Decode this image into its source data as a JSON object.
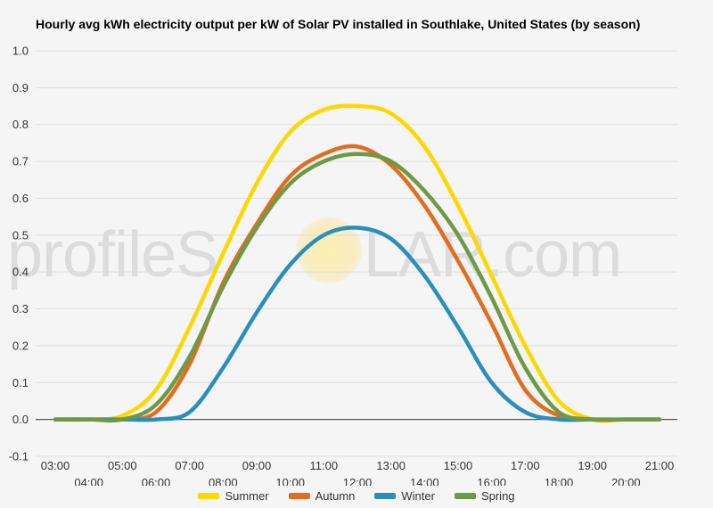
{
  "chart_data": {
    "type": "line",
    "title": "Hourly avg kWh electricity output per kW of Solar PV installed in Southlake, United States (by season)",
    "watermark": "profileSOLAR.com",
    "xlabel": "",
    "ylabel": "",
    "x": [
      "03:00",
      "04:00",
      "05:00",
      "06:00",
      "07:00",
      "08:00",
      "09:00",
      "10:00",
      "11:00",
      "12:00",
      "13:00",
      "14:00",
      "15:00",
      "16:00",
      "17:00",
      "18:00",
      "19:00",
      "20:00",
      "21:00"
    ],
    "y_ticks": [
      "-0.1",
      "0.0",
      "0.1",
      "0.2",
      "0.3",
      "0.4",
      "0.5",
      "0.6",
      "0.7",
      "0.8",
      "0.9",
      "1.0"
    ],
    "ylim": [
      -0.1,
      1.0
    ],
    "grid": true,
    "legend_position": "bottom",
    "series": [
      {
        "name": "Summer",
        "color": "#FFD700",
        "values": [
          0,
          0,
          0.01,
          0.08,
          0.25,
          0.45,
          0.64,
          0.78,
          0.84,
          0.85,
          0.83,
          0.74,
          0.58,
          0.39,
          0.2,
          0.05,
          0,
          0,
          0
        ]
      },
      {
        "name": "Autumn",
        "color": "#E36C21",
        "values": [
          0,
          0,
          0,
          0.02,
          0.15,
          0.37,
          0.53,
          0.66,
          0.72,
          0.74,
          0.69,
          0.58,
          0.43,
          0.26,
          0.08,
          0.01,
          0,
          0,
          0
        ]
      },
      {
        "name": "Winter",
        "color": "#2A8FBD",
        "values": [
          0,
          0,
          0,
          0,
          0.02,
          0.14,
          0.29,
          0.42,
          0.5,
          0.52,
          0.49,
          0.39,
          0.25,
          0.1,
          0.02,
          0,
          0,
          0,
          0
        ]
      },
      {
        "name": "Spring",
        "color": "#6F9A45",
        "values": [
          0,
          0,
          0,
          0.04,
          0.17,
          0.36,
          0.52,
          0.64,
          0.7,
          0.72,
          0.7,
          0.62,
          0.5,
          0.33,
          0.14,
          0.02,
          0,
          0,
          0
        ]
      }
    ]
  }
}
